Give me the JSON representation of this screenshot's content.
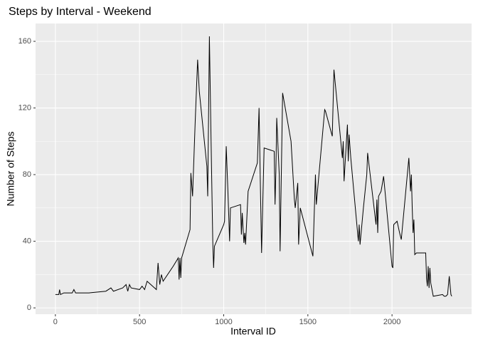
{
  "chart_data": {
    "type": "line",
    "title": "Steps by Interval - Weekend",
    "xlabel": "Interval ID",
    "ylabel": "Number of Steps",
    "color": "#000000",
    "grid": true,
    "x": [
      0,
      20,
      25,
      30,
      50,
      100,
      110,
      120,
      200,
      300,
      330,
      345,
      400,
      420,
      430,
      440,
      450,
      500,
      515,
      530,
      545,
      600,
      610,
      620,
      630,
      640,
      700,
      730,
      735,
      740,
      745,
      750,
      800,
      805,
      815,
      830,
      845,
      855,
      900,
      905,
      915,
      925,
      935,
      940,
      945,
      1000,
      1005,
      1015,
      1025,
      1035,
      1040,
      1100,
      1105,
      1110,
      1120,
      1125,
      1130,
      1145,
      1200,
      1210,
      1215,
      1225,
      1240,
      1300,
      1305,
      1310,
      1315,
      1330,
      1335,
      1350,
      1400,
      1420,
      1425,
      1440,
      1445,
      1455,
      1530,
      1545,
      1550,
      1600,
      1605,
      1645,
      1655,
      1705,
      1710,
      1715,
      1735,
      1740,
      1745,
      1755,
      1800,
      1805,
      1810,
      1830,
      1850,
      1855,
      1905,
      1910,
      1915,
      1920,
      1935,
      1950,
      2000,
      2005,
      2010,
      2030,
      2045,
      2055,
      2100,
      2110,
      2115,
      2120,
      2125,
      2130,
      2135,
      2145,
      2200,
      2205,
      2210,
      2215,
      2220,
      2225,
      2230,
      2245,
      2300,
      2310,
      2320,
      2330,
      2340,
      2350,
      2355
    ],
    "values": [
      8,
      8,
      11,
      8,
      9,
      9,
      11,
      9,
      9,
      10,
      12,
      10,
      12,
      14,
      10,
      14,
      12,
      11,
      13,
      11,
      16,
      11,
      27,
      14,
      20,
      16,
      25,
      30,
      17,
      30,
      18,
      30,
      47,
      81,
      67,
      110,
      149,
      130,
      85,
      67,
      163,
      100,
      40,
      24,
      37,
      50,
      52,
      97,
      70,
      40,
      60,
      62,
      44,
      57,
      39,
      45,
      38,
      70,
      87,
      120,
      90,
      33,
      96,
      94,
      62,
      82,
      114,
      80,
      34,
      129,
      100,
      65,
      60,
      75,
      38,
      60,
      31,
      80,
      62,
      119,
      118,
      103,
      143,
      90,
      100,
      76,
      110,
      88,
      104,
      90,
      40,
      50,
      38,
      60,
      80,
      93,
      50,
      65,
      45,
      67,
      70,
      79,
      25,
      24,
      50,
      52,
      45,
      41,
      90,
      70,
      80,
      60,
      45,
      53,
      32,
      33,
      33,
      18,
      13,
      25,
      12,
      24,
      15,
      7,
      8,
      7,
      7,
      8,
      19,
      8,
      7
    ],
    "xlim": [
      -117.75,
      2472.75
    ],
    "xticks": [
      0,
      500,
      1000,
      1500,
      2000
    ],
    "ylim": [
      -3.8,
      170.7
    ],
    "yticks": [
      0,
      40,
      80,
      120,
      160
    ]
  }
}
